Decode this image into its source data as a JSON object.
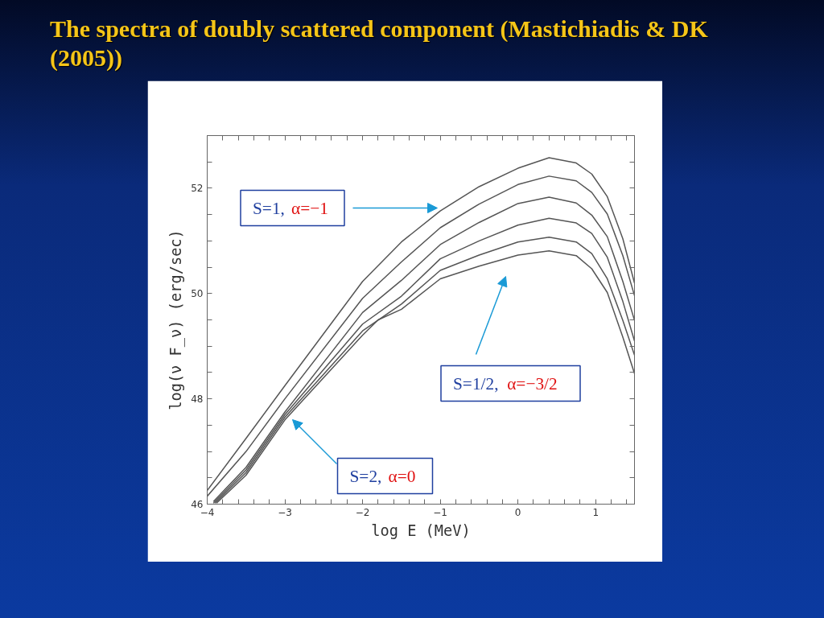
{
  "chart_data": {
    "type": "line",
    "title": "The spectra of doubly scattered component (Mastichiadis & DK (2005))",
    "xlabel": "log E (MeV)",
    "ylabel": "log(ν F_ν) (erg/sec)",
    "xlim": [
      -4,
      1.5
    ],
    "ylim": [
      46,
      53
    ],
    "xticks": [
      -4,
      {
        "value": -3.8,
        "label": null
      },
      {
        "value": -3.6,
        "label": null
      },
      {
        "value": -3.4,
        "label": null
      },
      {
        "value": -3.2,
        "label": null
      },
      -3,
      {
        "value": -2.8,
        "label": null
      },
      {
        "value": -2.6,
        "label": null
      },
      {
        "value": -2.4,
        "label": null
      },
      {
        "value": -2.2,
        "label": null
      },
      -2,
      {
        "value": -1.8,
        "label": null
      },
      {
        "value": -1.6,
        "label": null
      },
      {
        "value": -1.4,
        "label": null
      },
      {
        "value": -1.2,
        "label": null
      },
      -1,
      {
        "value": -0.8,
        "label": null
      },
      {
        "value": -0.6,
        "label": null
      },
      {
        "value": -0.4,
        "label": null
      },
      {
        "value": -0.2,
        "label": null
      },
      0,
      {
        "value": 0.2,
        "label": null
      },
      {
        "value": 0.4,
        "label": null
      },
      {
        "value": 0.6,
        "label": null
      },
      {
        "value": 0.8,
        "label": null
      },
      1,
      {
        "value": 1.2,
        "label": null
      },
      {
        "value": 1.4,
        "label": null
      }
    ],
    "yticks": [
      46,
      {
        "value": 46.5,
        "label": null
      },
      {
        "value": 47,
        "label": null
      },
      {
        "value": 47.5,
        "label": null
      },
      48,
      {
        "value": 48.5,
        "label": null
      },
      {
        "value": 49,
        "label": null
      },
      {
        "value": 49.5,
        "label": null
      },
      50,
      {
        "value": 50.5,
        "label": null
      },
      {
        "value": 51,
        "label": null
      },
      {
        "value": 51.5,
        "label": null
      },
      52,
      {
        "value": 52.5,
        "label": null
      }
    ],
    "grid": false,
    "marker": "none",
    "line_style": "solid",
    "series": [
      {
        "color": "#555555",
        "x": [
          -4,
          -3.5,
          -3,
          -2,
          -1.5,
          -1,
          -0.5,
          0,
          0.4,
          0.75,
          0.95,
          1.15,
          1.35,
          1.5
        ],
        "values": [
          46.26,
          47.25,
          48.25,
          50.23,
          50.98,
          51.57,
          52.03,
          52.38,
          52.58,
          52.48,
          52.27,
          51.84,
          51.04,
          50.2
        ]
      },
      {
        "color": "#555555",
        "x": [
          -4,
          -3.5,
          -3,
          -2,
          -1.5,
          -1,
          -0.5,
          0,
          0.4,
          0.75,
          0.95,
          1.15,
          1.35,
          1.5
        ],
        "values": [
          46.15,
          47.0,
          48.0,
          49.91,
          50.6,
          51.25,
          51.7,
          52.07,
          52.23,
          52.14,
          51.92,
          51.51,
          50.72,
          49.96
        ]
      },
      {
        "color": "#555555",
        "x": [
          -3.92,
          -3.5,
          -3,
          -2,
          -1.5,
          -1,
          -0.5,
          0,
          0.4,
          0.75,
          0.95,
          1.15,
          1.35,
          1.5
        ],
        "values": [
          46.05,
          46.7,
          47.75,
          49.64,
          50.25,
          50.93,
          51.35,
          51.71,
          51.83,
          51.72,
          51.49,
          51.08,
          50.23,
          49.49
        ]
      },
      {
        "color": "#555555",
        "x": [
          -3.92,
          -3.5,
          -3,
          -2,
          -1.5,
          -1,
          -0.5,
          0,
          0.4,
          0.75,
          0.95,
          1.15,
          1.35,
          1.5
        ],
        "values": [
          46.02,
          46.65,
          47.7,
          49.42,
          49.95,
          50.66,
          51.0,
          51.3,
          51.43,
          51.34,
          51.14,
          50.69,
          49.85,
          49.1
        ]
      },
      {
        "color": "#555555",
        "x": [
          -3.9,
          -3.5,
          -3,
          -2,
          -1.5,
          -1,
          -0.5,
          0,
          0.4,
          0.75,
          0.95,
          1.15,
          1.35,
          1.5
        ],
        "values": [
          46.02,
          46.6,
          47.65,
          49.29,
          49.8,
          50.44,
          50.73,
          50.98,
          51.07,
          50.98,
          50.76,
          50.28,
          49.49,
          48.83
        ]
      },
      {
        "color": "#555555",
        "x": [
          -3.88,
          -3.5,
          -3,
          -2,
          -1.8,
          -1.5,
          -1,
          -0.5,
          0,
          0.4,
          0.75,
          0.95,
          1.15,
          1.35,
          1.5
        ],
        "values": [
          46.02,
          46.55,
          47.6,
          49.21,
          49.5,
          49.7,
          50.28,
          50.52,
          50.73,
          50.81,
          50.72,
          50.47,
          50.02,
          49.17,
          48.48
        ]
      }
    ],
    "annotations": [
      "S=1, α=−1",
      "S=1/2, α=−3/2",
      "S=2, α=0"
    ]
  }
}
